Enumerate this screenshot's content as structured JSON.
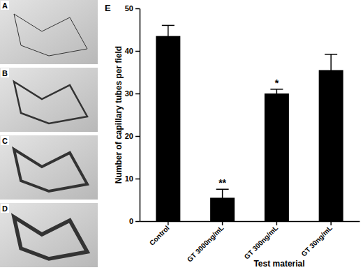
{
  "image_panels": {
    "labels": [
      "A",
      "B",
      "C",
      "D"
    ]
  },
  "chart_data": {
    "type": "bar",
    "panel": "E",
    "categories": [
      "Control",
      "GT 3000ng/mL",
      "GT 300ng/mL",
      "GT 30ng/mL"
    ],
    "values": [
      43.5,
      5.5,
      30,
      35.5
    ],
    "errors": [
      2.5,
      2,
      1,
      3.7
    ],
    "color": "#000000",
    "x_label": "Test material",
    "y_label": "Number of capillary tubes per field",
    "ylim": [
      0,
      50
    ],
    "yticks": [
      0,
      10,
      20,
      30,
      40,
      50
    ],
    "annotations": [
      {
        "text": "**",
        "category": "GT 3000ng/mL"
      },
      {
        "text": "*",
        "category": "GT 300ng/mL"
      }
    ]
  }
}
